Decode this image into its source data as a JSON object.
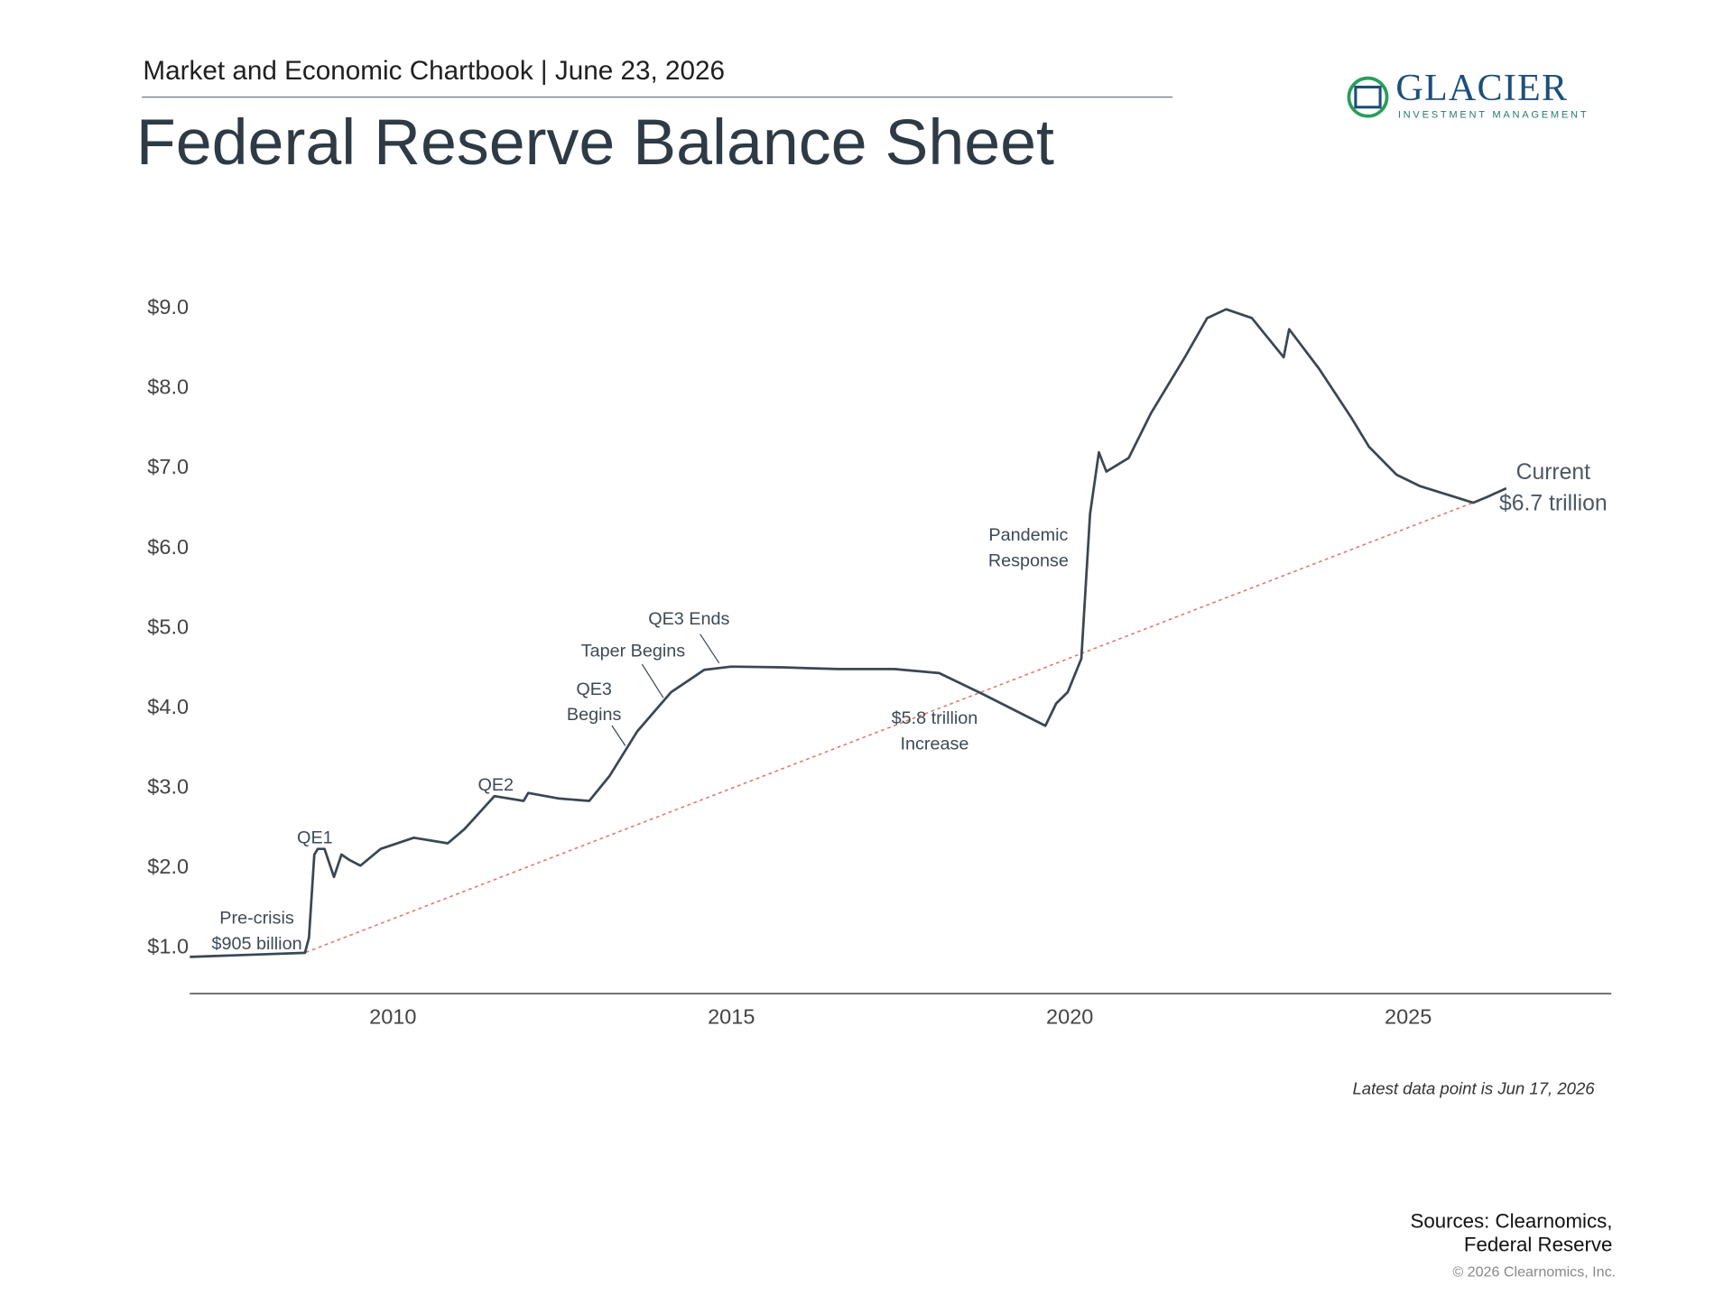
{
  "header": {
    "subtitle": "Market and Economic Chartbook | June 23, 2026",
    "title": "Federal Reserve Balance Sheet"
  },
  "logo": {
    "name": "GLACIER",
    "tagline": "INVESTMENT MANAGEMENT"
  },
  "chart_data": {
    "type": "line",
    "color": "#3a4753",
    "x": [
      2007.0,
      2008.7,
      2008.76,
      2008.84,
      2008.89,
      2008.99,
      2009.13,
      2009.24,
      2009.36,
      2009.52,
      2009.82,
      2010.31,
      2010.81,
      2011.06,
      2011.5,
      2011.93,
      2012.0,
      2012.46,
      2012.9,
      2013.2,
      2013.61,
      2014.11,
      2014.6,
      2015.0,
      2015.76,
      2016.58,
      2017.41,
      2018.07,
      2018.73,
      2019.64,
      2019.8,
      2019.97,
      2020.17,
      2020.3,
      2020.43,
      2020.54,
      2020.87,
      2021.2,
      2021.7,
      2022.03,
      2022.31,
      2022.69,
      2023.16,
      2023.24,
      2023.68,
      2024.17,
      2024.42,
      2024.83,
      2025.17,
      2025.96,
      2026.16,
      2026.45
    ],
    "values": [
      0.89,
      0.94,
      1.13,
      2.17,
      2.24,
      2.24,
      1.89,
      2.17,
      2.1,
      2.03,
      2.24,
      2.38,
      2.31,
      2.49,
      2.9,
      2.84,
      2.94,
      2.87,
      2.84,
      3.15,
      3.71,
      4.2,
      4.48,
      4.52,
      4.51,
      4.49,
      4.49,
      4.44,
      4.17,
      3.78,
      4.06,
      4.2,
      4.62,
      6.43,
      7.2,
      6.96,
      7.13,
      7.69,
      8.39,
      8.88,
      8.99,
      8.88,
      8.39,
      8.74,
      8.25,
      7.62,
      7.27,
      6.92,
      6.78,
      6.57,
      6.64,
      6.75
    ],
    "xlim": [
      2007.0,
      2028.0
    ],
    "xticks": [
      2010,
      2015,
      2020,
      2025
    ],
    "ylim": [
      0.43,
      9.2
    ],
    "yticks": [
      {
        "value": 1,
        "label": "$1.0"
      },
      {
        "value": 2,
        "label": "$2.0"
      },
      {
        "value": 3,
        "label": "$3.0"
      },
      {
        "value": 4,
        "label": "$4.0"
      },
      {
        "value": 5,
        "label": "$5.0"
      },
      {
        "value": 6,
        "label": "$6.0"
      },
      {
        "value": 7,
        "label": "$7.0"
      },
      {
        "value": 8,
        "label": "$8.0"
      },
      {
        "value": 9,
        "label": "$9.0"
      }
    ],
    "annotations": [
      [
        "QE1"
      ],
      [
        "Pre-crisis",
        "$905 billion"
      ],
      [
        "QE2"
      ],
      [
        "QE3",
        "Begins"
      ],
      [
        "Taper Begins"
      ],
      [
        "QE3 Ends"
      ],
      [
        "$5.8 trillion",
        "Increase"
      ],
      [
        "Pandemic",
        "Response"
      ],
      [
        "Current",
        "$6.7 trillion"
      ]
    ]
  },
  "footer": {
    "note": "Latest data point is Jun 17, 2026",
    "sources": [
      "Sources: Clearnomics,",
      "Federal Reserve"
    ],
    "copyright": "© 2026 Clearnomics, Inc."
  }
}
